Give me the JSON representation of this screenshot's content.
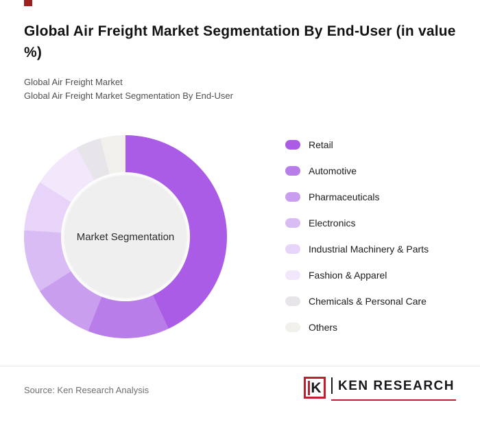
{
  "page": {
    "title": "Global Air Freight Market Segmentation By End-User (in value %)",
    "subtitle_line1": "Global Air Freight Market",
    "subtitle_line2": "Global Air Freight Market Segmentation By End-User"
  },
  "chart_data": {
    "type": "pie",
    "style": "donut",
    "title": "Global Air Freight Market Segmentation By End-User (in value %)",
    "center_label": "Market Segmentation",
    "legend_position": "right",
    "start_angle_deg": 0,
    "direction": "clockwise",
    "units": "value %",
    "segments": [
      {
        "label": "Retail",
        "value": 43,
        "color": "#aa5ce6"
      },
      {
        "label": "Automotive",
        "value": 13,
        "color": "#b97de9"
      },
      {
        "label": "Pharmaceuticals",
        "value": 10,
        "color": "#c99eef"
      },
      {
        "label": "Electronics",
        "value": 10,
        "color": "#d9bcf4"
      },
      {
        "label": "Industrial Machinery & Parts",
        "value": 8,
        "color": "#e7d4f8"
      },
      {
        "label": "Fashion & Apparel",
        "value": 8,
        "color": "#f2e7fb"
      },
      {
        "label": "Chemicals & Personal Care",
        "value": 4,
        "color": "#e8e5ea"
      },
      {
        "label": "Others",
        "value": 4,
        "color": "#f1f0ed"
      }
    ]
  },
  "footer": {
    "source": "Source: Ken Research Analysis",
    "logo_letter": "K",
    "logo_text": "KEN RESEARCH"
  },
  "colors": {
    "accent_red": "#c21f2c",
    "corner_accent": "#9c2020",
    "center_circle": "#efefef"
  }
}
